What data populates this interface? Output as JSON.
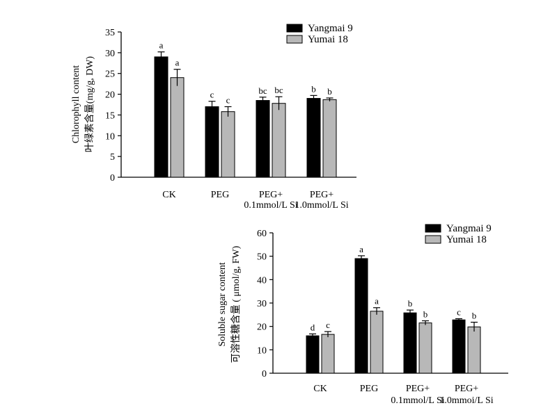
{
  "chart_data": [
    {
      "type": "bar",
      "categories": [
        "CK",
        "PEG",
        "PEG+|0.1mmol/L Si",
        "PEG+|1.0mmol/L Si"
      ],
      "ylabel": [
        "Chlorophyll content",
        "叶绿素含量(mg/g, DW)"
      ],
      "ylim": [
        0,
        35
      ],
      "yticks": [
        0,
        5,
        10,
        15,
        20,
        25,
        30,
        35
      ],
      "legend_position": "top-right",
      "series": [
        {
          "name": "Yangmai 9",
          "color": "#000000",
          "values": [
            29,
            17,
            18.5,
            19
          ],
          "errors": [
            1.2,
            1.3,
            0.8,
            0.7
          ],
          "labels": [
            "a",
            "c",
            "bc",
            "b"
          ]
        },
        {
          "name": "Yumai 18",
          "color": "#b8b8b8",
          "values": [
            24,
            15.8,
            17.8,
            18.7
          ],
          "errors": [
            2.0,
            1.2,
            1.6,
            0.4
          ],
          "labels": [
            "a",
            "c",
            "bc",
            "b"
          ]
        }
      ]
    },
    {
      "type": "bar",
      "categories": [
        "CK",
        "PEG",
        "PEG+|0.1mmol/L Si",
        "PEG+|1.0mmoi/L Si"
      ],
      "ylabel": [
        "Soluble sugar content",
        "可溶性糖含量 ( μmol/g, FW)"
      ],
      "ylim": [
        0,
        60
      ],
      "yticks": [
        0,
        10,
        20,
        30,
        40,
        50,
        60
      ],
      "legend_position": "top-right",
      "series": [
        {
          "name": "Yangmai 9",
          "color": "#000000",
          "values": [
            16,
            49,
            25.8,
            22.8
          ],
          "errors": [
            0.8,
            1.2,
            1.2,
            0.5
          ],
          "labels": [
            "d",
            "a",
            "b",
            "c"
          ]
        },
        {
          "name": "Yumai 18",
          "color": "#b8b8b8",
          "values": [
            16.6,
            26.5,
            21.5,
            19.8
          ],
          "errors": [
            1.2,
            1.5,
            0.9,
            2.0
          ],
          "labels": [
            "c",
            "a",
            "b",
            "b"
          ]
        }
      ]
    }
  ]
}
